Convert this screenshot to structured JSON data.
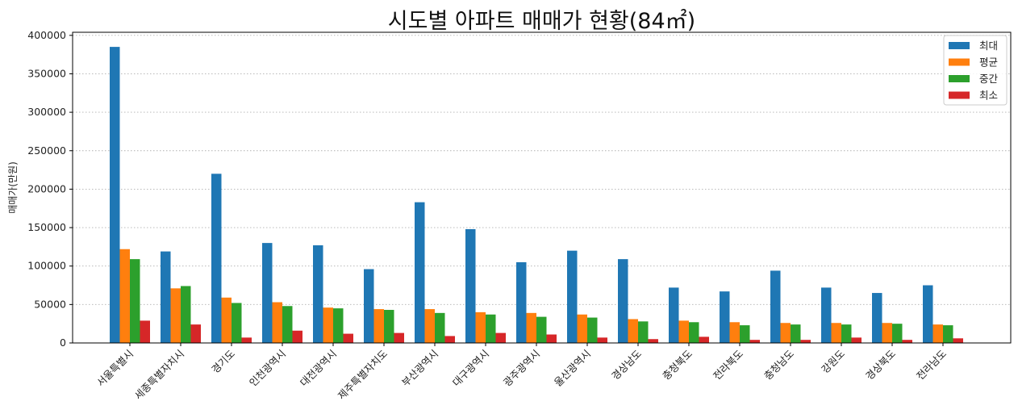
{
  "chart_data": {
    "type": "bar",
    "title": "시도별 아파트 매매가 현황(84㎡)",
    "xlabel": "",
    "ylabel": "매매가(만원)",
    "ylim": [
      0,
      404000
    ],
    "yticks": [
      0,
      50000,
      100000,
      150000,
      200000,
      250000,
      300000,
      350000,
      400000
    ],
    "grid": "y-dotted",
    "legend_position": "top-right",
    "categories": [
      "서울특별시",
      "세종특별자치시",
      "경기도",
      "인천광역시",
      "대전광역시",
      "제주특별자치도",
      "부산광역시",
      "대구광역시",
      "광주광역시",
      "울산광역시",
      "경상남도",
      "충청북도",
      "전라북도",
      "충청남도",
      "강원도",
      "경상북도",
      "전라남도"
    ],
    "series": [
      {
        "name": "최대",
        "color": "#1f77b4",
        "values": [
          385000,
          119000,
          220000,
          130000,
          127000,
          96000,
          183000,
          148000,
          105000,
          120000,
          109000,
          72000,
          67000,
          94000,
          72000,
          65000,
          75000
        ]
      },
      {
        "name": "평균",
        "color": "#ff7f0e",
        "values": [
          122000,
          71000,
          59000,
          53000,
          46000,
          44000,
          44000,
          40000,
          39000,
          37000,
          31000,
          29000,
          27000,
          26000,
          26000,
          26000,
          24000
        ]
      },
      {
        "name": "중간",
        "color": "#2ca02c",
        "values": [
          109000,
          74000,
          52000,
          48000,
          45000,
          43000,
          39000,
          37000,
          34000,
          33000,
          28000,
          27000,
          23000,
          24000,
          24000,
          25000,
          23000
        ]
      },
      {
        "name": "최소",
        "color": "#d62728",
        "values": [
          29000,
          24000,
          7000,
          16000,
          12000,
          13000,
          9000,
          13000,
          11000,
          7000,
          5000,
          8000,
          4000,
          4000,
          7000,
          4000,
          6000
        ]
      }
    ]
  }
}
